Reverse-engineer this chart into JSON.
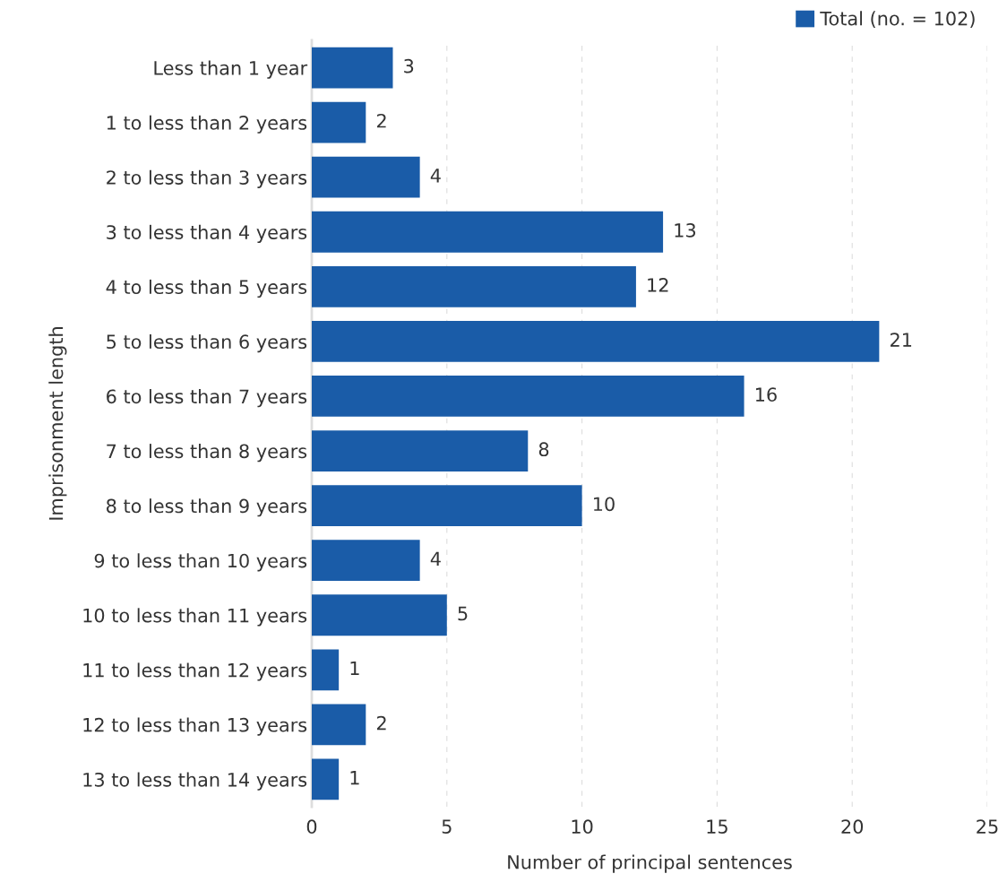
{
  "chart_data": {
    "type": "bar",
    "orientation": "horizontal",
    "categories": [
      "Less than 1 year",
      "1 to less than 2 years",
      "2 to less than 3 years",
      "3 to less than 4 years",
      "4 to less than 5 years",
      "5 to less than 6 years",
      "6 to less than 7 years",
      "7 to less than 8 years",
      "8 to less than 9 years",
      "9 to less than 10 years",
      "10 to less than 11 years",
      "11 to less than 12 years",
      "12 to less than 13 years",
      "13 to less than 14 years"
    ],
    "series": [
      {
        "name": "Total (no. = 102)",
        "color": "#1a5ca8",
        "values": [
          3,
          2,
          4,
          13,
          12,
          21,
          16,
          8,
          10,
          4,
          5,
          1,
          2,
          1
        ]
      }
    ],
    "xlim": [
      0,
      25
    ],
    "xticks": [
      0,
      5,
      10,
      15,
      20,
      25
    ],
    "xlabel": "Number of principal sentences",
    "ylabel": "Imprisonment length",
    "grid": "x",
    "legend": "top right",
    "data_labels": true
  }
}
